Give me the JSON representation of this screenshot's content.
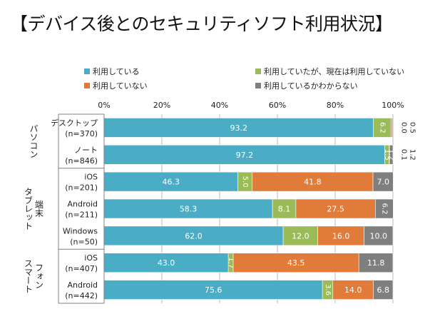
{
  "title": "【デバイス後とのセキュリティソフト利用状況】",
  "chart_data": {
    "type": "bar",
    "orientation": "horizontal",
    "stacked": "percent",
    "title": "【デバイス後とのセキュリティソフト利用状況】",
    "xlim": [
      0,
      100
    ],
    "x_ticks": [
      "0%",
      "20%",
      "40%",
      "60%",
      "80%",
      "100%"
    ],
    "grid": true,
    "legend_position": "top",
    "series": [
      {
        "name": "利用している",
        "color": "#4bacc6",
        "values": [
          93.2,
          97.2,
          46.3,
          58.3,
          62.0,
          43.0,
          75.6
        ]
      },
      {
        "name": "利用していたが、現在は利用していない",
        "color": "#9bbb59",
        "values": [
          6.2,
          1.5,
          5.0,
          8.1,
          12.0,
          1.7,
          3.6
        ]
      },
      {
        "name": "利用していない",
        "color": "#e07b39",
        "values": [
          0.5,
          0.1,
          41.8,
          27.5,
          16.0,
          43.5,
          14.0
        ]
      },
      {
        "name": "利用しているかわからない",
        "color": "#7f7f7f",
        "values": [
          0.0,
          1.2,
          7.0,
          6.2,
          10.0,
          11.8,
          6.8
        ]
      }
    ],
    "categories": [
      {
        "name": "デスクトップ",
        "n": "(n=370)",
        "group": "パソコン"
      },
      {
        "name": "ノート",
        "n": "(n=846)",
        "group": "パソコン"
      },
      {
        "name": "iOS",
        "n": "(n=201)",
        "group": "タブレット端末"
      },
      {
        "name": "Android",
        "n": "(n=211)",
        "group": "タブレット端末"
      },
      {
        "name": "Windows",
        "n": "(n=50)",
        "group": "タブレット端末"
      },
      {
        "name": "iOS",
        "n": "(n=407)",
        "group": "スマートフォン"
      },
      {
        "name": "Android",
        "n": "(n=442)",
        "group": "スマートフォン"
      }
    ],
    "groups": [
      {
        "lines": [
          "パソコン"
        ]
      },
      {
        "lines": [
          "タブレット",
          "端末"
        ]
      },
      {
        "lines": [
          "スマート",
          "フォン"
        ]
      }
    ],
    "outside_labels": [
      [
        "0.0",
        "0.5"
      ],
      [
        "0.1",
        "1.2"
      ]
    ]
  }
}
